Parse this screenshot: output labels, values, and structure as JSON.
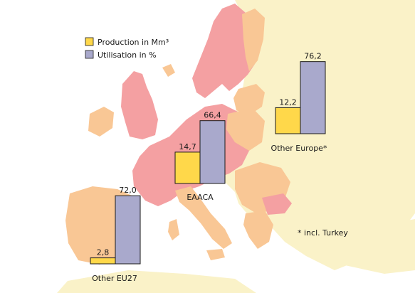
{
  "colors": {
    "production": "#FFD84A",
    "utilisation": "#A9A9CC",
    "map_eaaca": "#F4A0A2",
    "map_other_eu27": "#F9C795",
    "map_other_europe": "#FAF2C8",
    "sea": "#FFFFFF"
  },
  "legend": {
    "production": "Production in Mm³",
    "utilisation": "Utilisation in %"
  },
  "footnote": "* incl. Turkey",
  "chart_data": {
    "type": "bar",
    "categories": [
      "EAACA",
      "Other EU27",
      "Other Europe*"
    ],
    "series": [
      {
        "name": "Production in Mm³",
        "values": [
          14.7,
          2.8,
          12.2
        ],
        "labels": [
          "14,7",
          "2,8",
          "12,2"
        ]
      },
      {
        "name": "Utilisation in %",
        "values": [
          66.4,
          72.0,
          76.2
        ],
        "labels": [
          "66,4",
          "72,0",
          "76,2"
        ]
      }
    ],
    "title": "",
    "xlabel": "",
    "ylabel": "",
    "legend_position": "top-left",
    "grid": false
  }
}
